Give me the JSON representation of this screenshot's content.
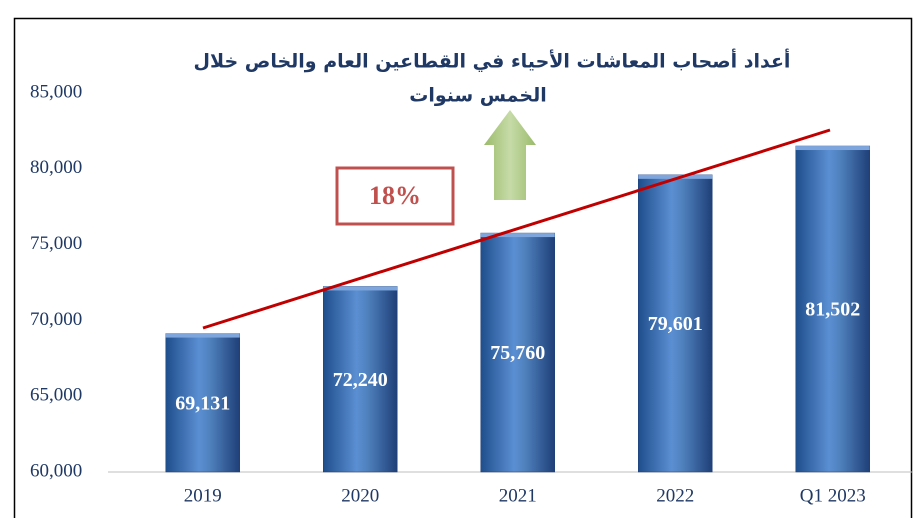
{
  "chart_data": {
    "type": "bar",
    "title": [
      "أعداد أصحاب المعاشات الأحياء في القطاعين العام والخاص خلال",
      "الخمس سنوات"
    ],
    "categories": [
      "2019",
      "2020",
      "2021",
      "2022",
      "Q1 2023"
    ],
    "values": [
      69131,
      72240,
      75760,
      79601,
      81502
    ],
    "value_labels": [
      "69,131",
      "72,240",
      "75,760",
      "79,601",
      "81,502"
    ],
    "color": "#4f81bd",
    "ylim": [
      60000,
      85000
    ],
    "yticks": [
      {
        "value": 60000,
        "label": "60,000"
      },
      {
        "value": 65000,
        "label": "65,000"
      },
      {
        "value": 70000,
        "label": "70,000"
      },
      {
        "value": 75000,
        "label": "75,000"
      },
      {
        "value": 80000,
        "label": "80,000"
      },
      {
        "value": 85000,
        "label": "85,000"
      }
    ],
    "grid": false,
    "annotation": "18%"
  }
}
